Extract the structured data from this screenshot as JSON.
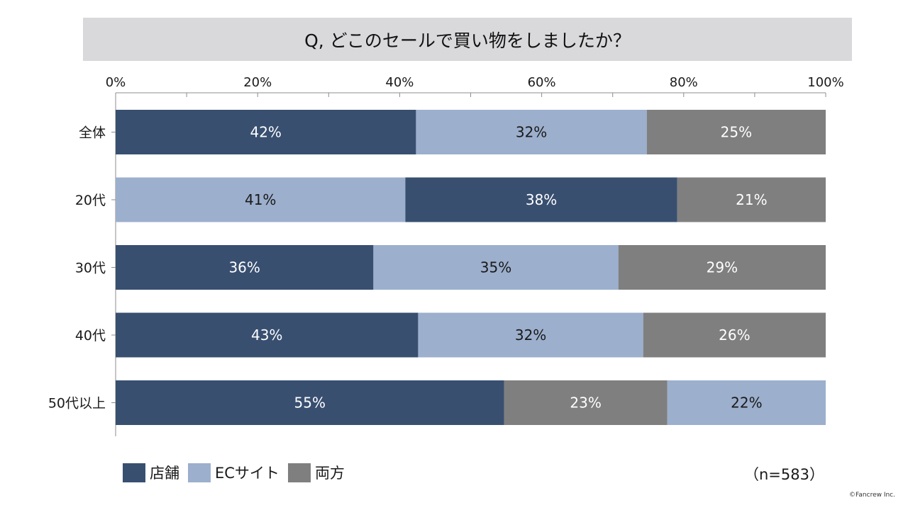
{
  "title": "Q, どこのセールで買い物をしましたか？",
  "sample_note": "（n=583）",
  "copyright": "©Fancrew Inc.",
  "legend": [
    {
      "name": "店舗",
      "color": "#384f70"
    },
    {
      "name": "ECサイト",
      "color": "#9cafcd"
    },
    {
      "name": "両方",
      "color": "#7f7f7f"
    }
  ],
  "chart_data": {
    "type": "bar",
    "orientation": "horizontal",
    "stacked": true,
    "title": "Q, どこのセールで買い物をしましたか？",
    "x_ticks": [
      "0%",
      "20%",
      "40%",
      "60%",
      "80%",
      "100%"
    ],
    "xlim": [
      0,
      100
    ],
    "legend_position": "bottom-left",
    "rows": [
      {
        "label": "全体",
        "segments": [
          {
            "series": "店舗",
            "value": 42.3,
            "label": "42%"
          },
          {
            "series": "ECサイト",
            "value": 32.5,
            "label": "32%"
          },
          {
            "series": "両方",
            "value": 25.2,
            "label": "25%"
          }
        ]
      },
      {
        "label": "20代",
        "segments": [
          {
            "series": "ECサイト",
            "value": 40.8,
            "label": "41%"
          },
          {
            "series": "店舗",
            "value": 38.3,
            "label": "38%"
          },
          {
            "series": "両方",
            "value": 20.9,
            "label": "21%"
          }
        ]
      },
      {
        "label": "30代",
        "segments": [
          {
            "series": "店舗",
            "value": 36.3,
            "label": "36%"
          },
          {
            "series": "ECサイト",
            "value": 34.5,
            "label": "35%"
          },
          {
            "series": "両方",
            "value": 29.2,
            "label": "29%"
          }
        ]
      },
      {
        "label": "40代",
        "segments": [
          {
            "series": "店舗",
            "value": 42.6,
            "label": "43%"
          },
          {
            "series": "ECサイト",
            "value": 31.7,
            "label": "32%"
          },
          {
            "series": "両方",
            "value": 25.7,
            "label": "26%"
          }
        ]
      },
      {
        "label": "50代以上",
        "segments": [
          {
            "series": "店舗",
            "value": 54.7,
            "label": "55%"
          },
          {
            "series": "両方",
            "value": 23.0,
            "label": "23%"
          },
          {
            "series": "ECサイト",
            "value": 22.3,
            "label": "22%"
          }
        ]
      }
    ]
  }
}
